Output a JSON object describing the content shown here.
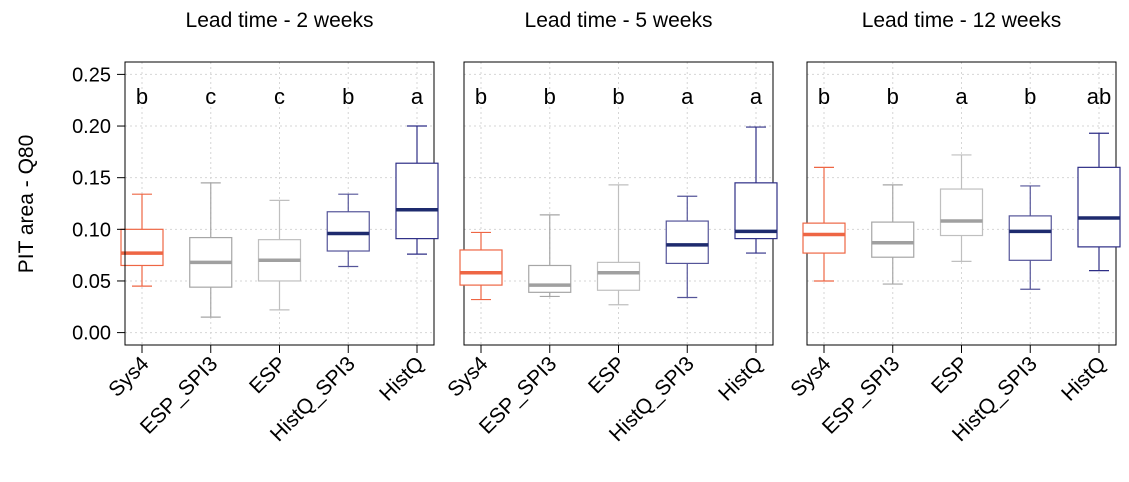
{
  "y_axis": {
    "label": "PIT area - Q80",
    "ticks": [
      "0.00",
      "0.05",
      "0.10",
      "0.15",
      "0.20",
      "0.25"
    ],
    "tick_values": [
      0.0,
      0.05,
      0.1,
      0.15,
      0.2,
      0.25
    ],
    "ylim": [
      -0.012,
      0.262
    ]
  },
  "categories": [
    "Sys4",
    "ESP_SPI3",
    "ESP",
    "HistQ_SPI3",
    "HistQ"
  ],
  "colors": {
    "Sys4": "#EE6644",
    "ESP_SPI3": "#A6A6A6",
    "ESP": "#BFBFBF",
    "HistQ_SPI3": "#545499",
    "HistQ": "#2E2E86"
  },
  "median_colors": {
    "Sys4": "#EE6644",
    "ESP_SPI3": "#A0A0A0",
    "ESP": "#A0A0A0",
    "HistQ_SPI3": "#1E2B6E",
    "HistQ": "#1E2B6E"
  },
  "chart_data": [
    {
      "type": "box",
      "title": "Lead time - 2 weeks",
      "categories": [
        "Sys4",
        "ESP_SPI3",
        "ESP",
        "HistQ_SPI3",
        "HistQ"
      ],
      "letters": [
        "b",
        "c",
        "c",
        "b",
        "a"
      ],
      "boxes": [
        {
          "min": 0.045,
          "q1": 0.065,
          "median": 0.077,
          "q3": 0.1,
          "max": 0.134
        },
        {
          "min": 0.015,
          "q1": 0.044,
          "median": 0.068,
          "q3": 0.092,
          "max": 0.145
        },
        {
          "min": 0.022,
          "q1": 0.05,
          "median": 0.07,
          "q3": 0.09,
          "max": 0.128
        },
        {
          "min": 0.064,
          "q1": 0.079,
          "median": 0.096,
          "q3": 0.117,
          "max": 0.134
        },
        {
          "min": 0.076,
          "q1": 0.091,
          "median": 0.119,
          "q3": 0.164,
          "max": 0.2
        }
      ]
    },
    {
      "type": "box",
      "title": "Lead time - 5 weeks",
      "categories": [
        "Sys4",
        "ESP_SPI3",
        "ESP",
        "HistQ_SPI3",
        "HistQ"
      ],
      "letters": [
        "b",
        "b",
        "b",
        "a",
        "a"
      ],
      "boxes": [
        {
          "min": 0.032,
          "q1": 0.046,
          "median": 0.058,
          "q3": 0.08,
          "max": 0.097
        },
        {
          "min": 0.035,
          "q1": 0.039,
          "median": 0.046,
          "q3": 0.065,
          "max": 0.114
        },
        {
          "min": 0.027,
          "q1": 0.041,
          "median": 0.058,
          "q3": 0.068,
          "max": 0.143
        },
        {
          "min": 0.034,
          "q1": 0.067,
          "median": 0.085,
          "q3": 0.108,
          "max": 0.132
        },
        {
          "min": 0.077,
          "q1": 0.091,
          "median": 0.098,
          "q3": 0.145,
          "max": 0.199
        }
      ]
    },
    {
      "type": "box",
      "title": "Lead time - 12 weeks",
      "categories": [
        "Sys4",
        "ESP_SPI3",
        "ESP",
        "HistQ_SPI3",
        "HistQ"
      ],
      "letters": [
        "b",
        "b",
        "a",
        "b",
        "ab"
      ],
      "boxes": [
        {
          "min": 0.05,
          "q1": 0.077,
          "median": 0.095,
          "q3": 0.106,
          "max": 0.16
        },
        {
          "min": 0.047,
          "q1": 0.073,
          "median": 0.087,
          "q3": 0.107,
          "max": 0.143
        },
        {
          "min": 0.069,
          "q1": 0.094,
          "median": 0.108,
          "q3": 0.139,
          "max": 0.172
        },
        {
          "min": 0.042,
          "q1": 0.07,
          "median": 0.098,
          "q3": 0.113,
          "max": 0.142
        },
        {
          "min": 0.06,
          "q1": 0.083,
          "median": 0.111,
          "q3": 0.16,
          "max": 0.193
        }
      ]
    }
  ]
}
